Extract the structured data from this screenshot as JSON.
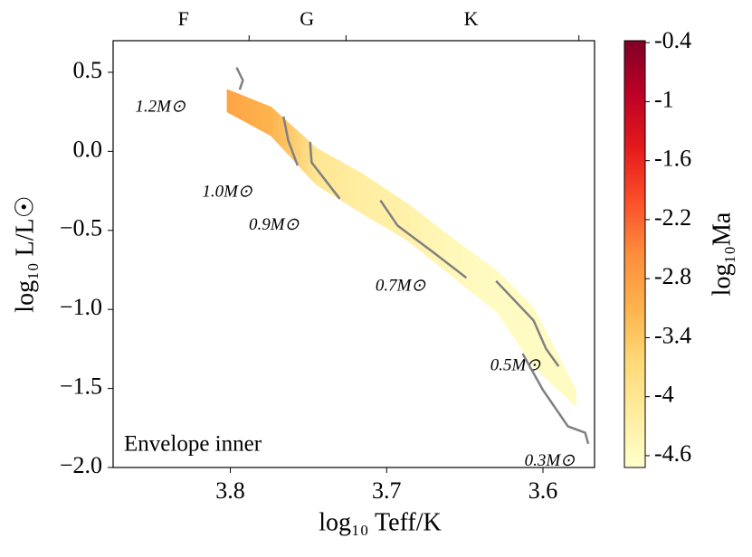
{
  "chart_data": {
    "type": "hr-band",
    "xlabel": "log₁₀ Teff/K",
    "ylabel": "log₁₀ L/L☉",
    "annotation": "Envelope inner",
    "xlim": [
      3.875,
      3.567
    ],
    "xticks": [
      3.8,
      3.7,
      3.6
    ],
    "ylim": [
      -2.0,
      0.7
    ],
    "yticks": [
      0.5,
      {
        "value": 0,
        "label": "0.0"
      },
      {
        "value": -0.5,
        "label": "−0.5"
      },
      {
        "value": -1.0,
        "label": "−1.0"
      },
      {
        "value": -1.5,
        "label": "−1.5"
      },
      {
        "value": -2.0,
        "label": "−2.0"
      }
    ],
    "top_ticks": [
      3.788,
      3.726,
      3.577
    ],
    "spectral_labels": [
      {
        "value": 3.83,
        "label": "F"
      },
      {
        "value": 3.751,
        "label": "G"
      },
      {
        "value": 3.646,
        "label": "K"
      }
    ],
    "colorbar": {
      "label": "log₁₀Ma",
      "clim": [
        -4.72,
        -0.38
      ],
      "ticks": [
        -0.4,
        -1.0,
        -1.6,
        -2.2,
        -2.8,
        -3.4,
        -4.0,
        -4.6
      ],
      "colormap": [
        "#ffffcc",
        "#ffeda0",
        "#fed976",
        "#feb24c",
        "#fd8d3c",
        "#fc4e2a",
        "#e31a1c",
        "#bd0026",
        "#800026"
      ]
    },
    "band": {
      "teff": [
        3.802,
        3.774,
        3.745,
        3.716,
        3.687,
        3.658,
        3.629,
        3.606,
        3.579
      ],
      "upper": [
        0.39,
        0.28,
        0.02,
        -0.14,
        -0.33,
        -0.55,
        -0.76,
        -0.99,
        -1.51
      ],
      "lower": [
        0.25,
        0.1,
        -0.21,
        -0.39,
        -0.56,
        -0.79,
        -1.02,
        -1.36,
        -1.61
      ],
      "values": [
        -2.9,
        -3.1,
        -4.0,
        -4.2,
        -4.3,
        -4.5,
        -4.6,
        -4.6,
        -4.6
      ]
    },
    "track_color": "#808080",
    "tracks": [
      {
        "name": "1.2M⊙",
        "x": [
          3.796,
          3.792,
          3.794
        ],
        "y": [
          0.53,
          0.45,
          0.39
        ]
      },
      {
        "name": "1.0M⊙",
        "x": [
          3.766,
          3.763,
          3.757
        ],
        "y": [
          0.22,
          0.07,
          -0.09
        ]
      },
      {
        "name": "0.9M⊙",
        "x": [
          3.749,
          3.748,
          3.73
        ],
        "y": [
          0.06,
          -0.07,
          -0.3
        ]
      },
      {
        "name": "0.7M⊙",
        "x": [
          3.704,
          3.693,
          3.67,
          3.649
        ],
        "y": [
          -0.31,
          -0.47,
          -0.64,
          -0.8
        ]
      },
      {
        "name": "0.5M⊙",
        "x": [
          3.63,
          3.606,
          3.598,
          3.59
        ],
        "y": [
          -0.82,
          -1.07,
          -1.25,
          -1.36
        ]
      },
      {
        "name": "0.3M⊙",
        "x": [
          3.613,
          3.6,
          3.584,
          3.573,
          3.571
        ],
        "y": [
          -1.28,
          -1.51,
          -1.74,
          -1.78,
          -1.85
        ]
      }
    ]
  }
}
